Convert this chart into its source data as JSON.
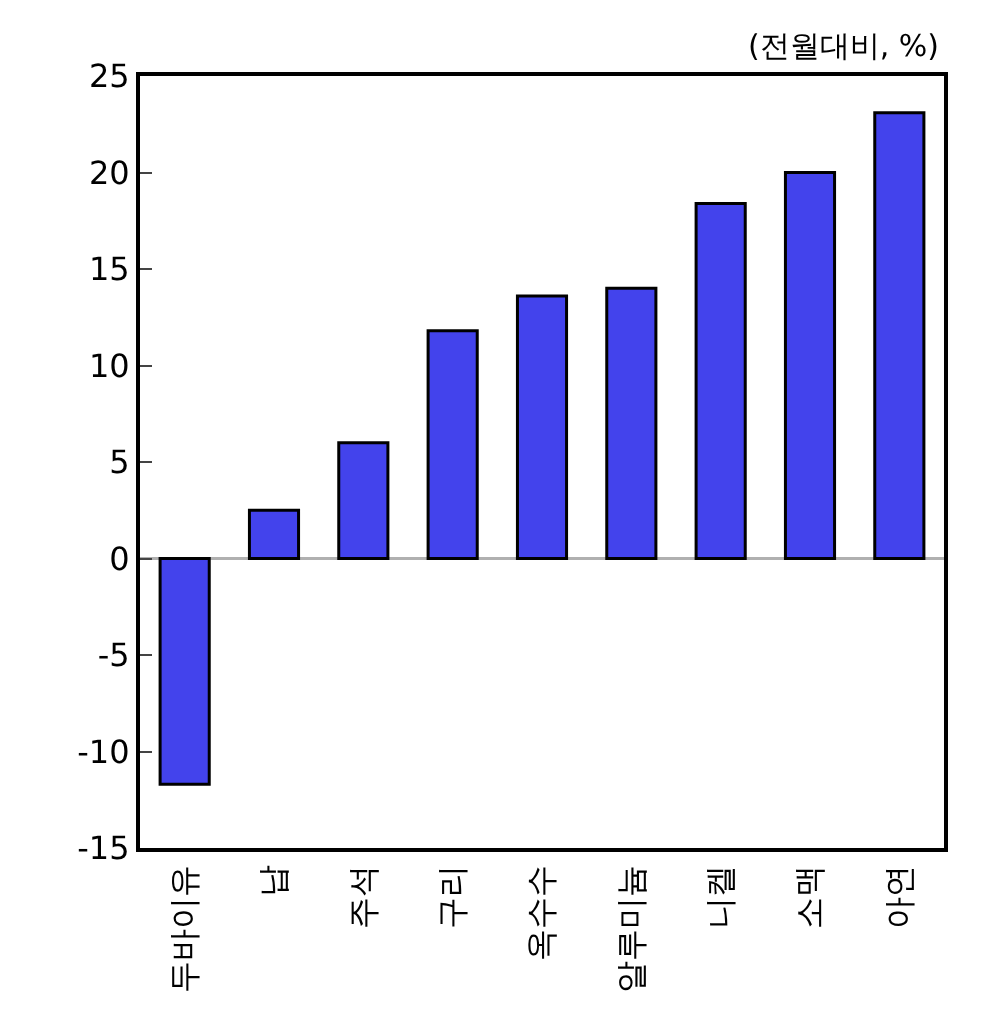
{
  "chart_data": {
    "type": "bar",
    "ylabel": "(전월대비, %)",
    "categories": [
      "두바이유",
      "납",
      "주석",
      "구리",
      "옥수수",
      "알루미늄",
      "니켈",
      "소맥",
      "아연"
    ],
    "values": [
      -11.7,
      2.5,
      6.0,
      11.8,
      13.6,
      14.0,
      18.4,
      20.0,
      23.1
    ],
    "color": "#4343ec",
    "ylim": [
      -15,
      25
    ],
    "yticks": [
      -15,
      -10,
      -5,
      0,
      5,
      10,
      15,
      20,
      25
    ],
    "grid": false,
    "ref_lines": [
      {
        "axis": "y",
        "value": 0,
        "color": "#b0b0b0"
      }
    ]
  }
}
